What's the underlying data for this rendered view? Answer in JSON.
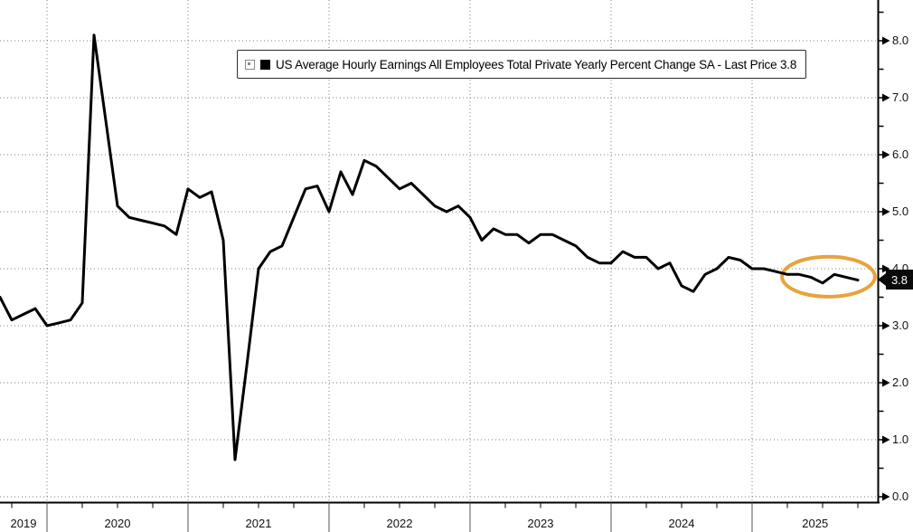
{
  "legend": {
    "expand_icon": "expand-toggle",
    "label": "US Average Hourly Earnings All Employees Total Private Yearly Percent Change SA - Last Price 3.8"
  },
  "price_marker": {
    "text": "3.8"
  },
  "colors": {
    "line": "#000000",
    "grid": "#7d7d7d",
    "axis": "#000000",
    "highlight_ellipse": "#E8A33D",
    "label_bg": "#0a0a0a",
    "label_fg": "#ffffff"
  },
  "chart_data": {
    "type": "line",
    "title": "US Average Hourly Earnings All Employees Total Private Yearly Percent Change SA",
    "legend_position": "top",
    "grid": "dotted",
    "frequency": "monthly",
    "start_month": "2019-08",
    "end_month": "2025-09",
    "last_price": 3.8,
    "series": [
      {
        "name": "US Average Hourly Earnings All Employees Total Private Yearly Percent Change SA",
        "color": "#000000",
        "values": [
          3.5,
          3.1,
          3.2,
          3.3,
          3.0,
          3.05,
          3.1,
          3.4,
          8.1,
          6.6,
          5.1,
          4.9,
          4.85,
          4.8,
          4.75,
          4.6,
          5.4,
          5.25,
          5.35,
          4.5,
          0.65,
          2.3,
          4.0,
          4.3,
          4.4,
          4.9,
          5.4,
          5.45,
          5.0,
          5.7,
          5.3,
          5.9,
          5.8,
          5.6,
          5.4,
          5.5,
          5.3,
          5.1,
          5.0,
          5.1,
          4.9,
          4.5,
          4.7,
          4.6,
          4.6,
          4.45,
          4.6,
          4.6,
          4.5,
          4.4,
          4.2,
          4.1,
          4.1,
          4.3,
          4.2,
          4.2,
          4.0,
          4.1,
          3.7,
          3.6,
          3.9,
          4.0,
          4.2,
          4.15,
          4.0,
          4.0,
          3.95,
          3.9,
          3.9,
          3.85,
          3.75,
          3.9,
          3.85,
          3.8
        ]
      }
    ],
    "x_axis": {
      "tick_labels": [
        "2019",
        "2020",
        "2021",
        "2022",
        "2023",
        "2024",
        "2025"
      ],
      "first_december_index": 4,
      "months_per_year": 12,
      "minor_ticks_per_year": 4
    },
    "y_axis": {
      "side": "right",
      "min": 0.0,
      "max": 8.5,
      "major_step": 1.0,
      "minor_step": 0.5,
      "tick_labels": [
        "0.0",
        "1.0",
        "2.0",
        "3.0",
        "4.0",
        "5.0",
        "6.0",
        "7.0",
        "8.0"
      ]
    },
    "annotation_ellipse": {
      "center_month_index": 70.5,
      "center_value": 3.86,
      "radius_months": 3.95,
      "radius_value": 0.35,
      "color": "#E8A33D",
      "stroke_width": 4
    }
  }
}
